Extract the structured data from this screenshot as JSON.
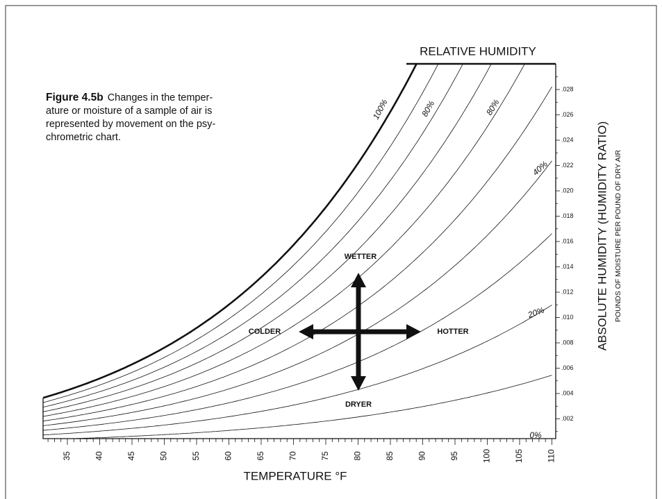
{
  "caption": {
    "label": "Figure 4.5b",
    "lines": [
      "Changes in the temper-",
      "ature or moisture of a sample of air is",
      "represented by movement on the psy-",
      "chrometric chart."
    ]
  },
  "chart": {
    "title": "RELATIVE HUMIDITY",
    "x_axis_label": "TEMPERATURE °F",
    "y_axis_label": "ABSOLUTE HUMIDITY  (HUMIDITY RATIO)",
    "y_axis_sublabel": "POUNDS OF MOISTURE PER POUND OF DRY AIR",
    "x_ticks": [
      "35",
      "40",
      "45",
      "50",
      "55",
      "60",
      "65",
      "70",
      "75",
      "80",
      "85",
      "90",
      "95",
      "100",
      "105",
      "110"
    ],
    "y_ticks": [
      ".002",
      ".004",
      ".006",
      ".008",
      ".010",
      ".012",
      ".014",
      ".016",
      ".018",
      ".020",
      ".022",
      ".024",
      ".026",
      ".028"
    ],
    "curve_labels": [
      "100%",
      "80%",
      "80%",
      "40%",
      "20%",
      "0%"
    ],
    "directions": {
      "up": "WETTER",
      "down": "DRYER",
      "left": "COLDER",
      "right": "HOTTER"
    }
  }
}
